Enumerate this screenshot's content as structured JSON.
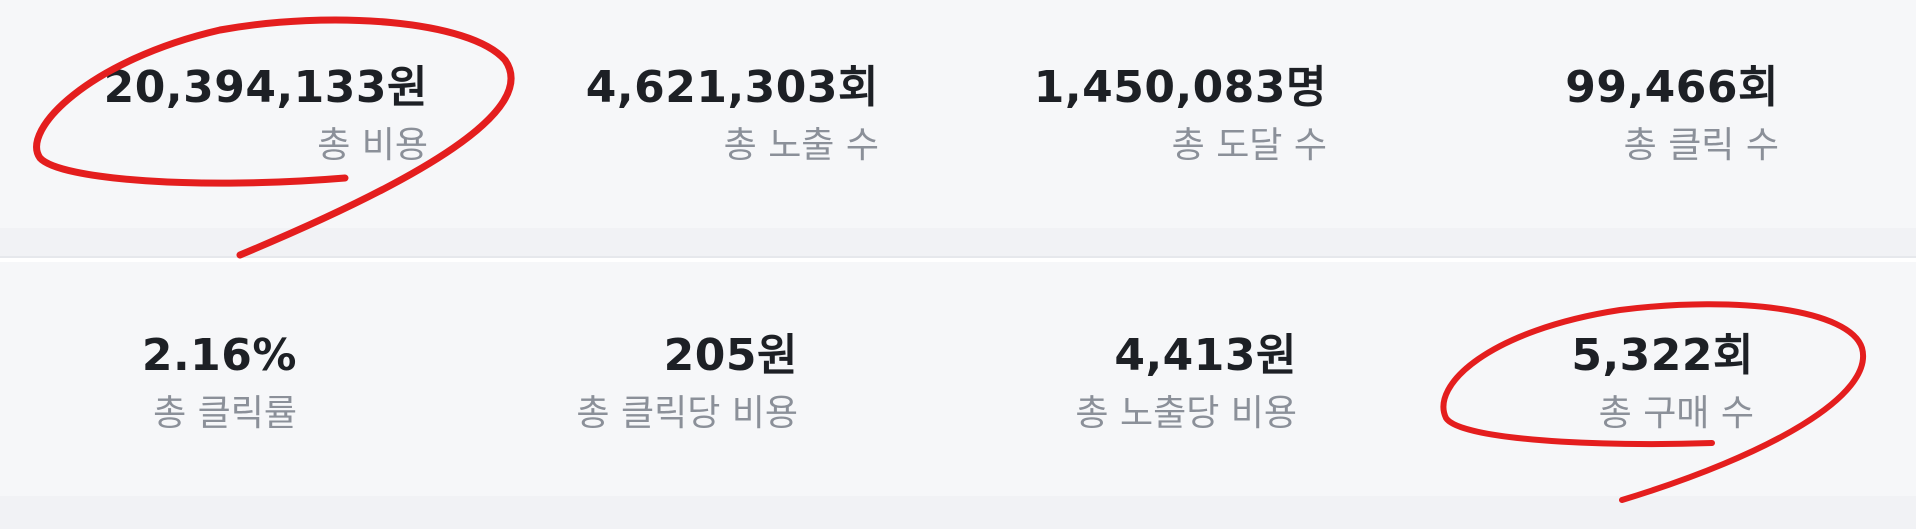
{
  "summary": {
    "row1": [
      {
        "id": "cost",
        "value": "20,394,133원",
        "label": "총 비용"
      },
      {
        "id": "impressions",
        "value": "4,621,303회",
        "label": "총 노출 수"
      },
      {
        "id": "reach",
        "value": "1,450,083명",
        "label": "총 도달 수"
      },
      {
        "id": "clicks",
        "value": "99,466회",
        "label": "총 클릭 수"
      }
    ],
    "row2": [
      {
        "id": "ctr",
        "value": "2.16%",
        "label": "총 클릭률"
      },
      {
        "id": "cpc",
        "value": "205원",
        "label": "총 클릭당 비용"
      },
      {
        "id": "cpm",
        "value": "4,413원",
        "label": "총 노출당 비용"
      },
      {
        "id": "purchases",
        "value": "5,322회",
        "label": "총 구매 수"
      }
    ]
  },
  "colors": {
    "panel_bg": "#f6f7f9",
    "value_text": "#1d2025",
    "label_text": "#8b9099",
    "annotation": "#e41e1e"
  },
  "annotations": [
    {
      "type": "hand-drawn-circle",
      "target": "cost"
    },
    {
      "type": "hand-drawn-circle",
      "target": "purchases"
    }
  ]
}
